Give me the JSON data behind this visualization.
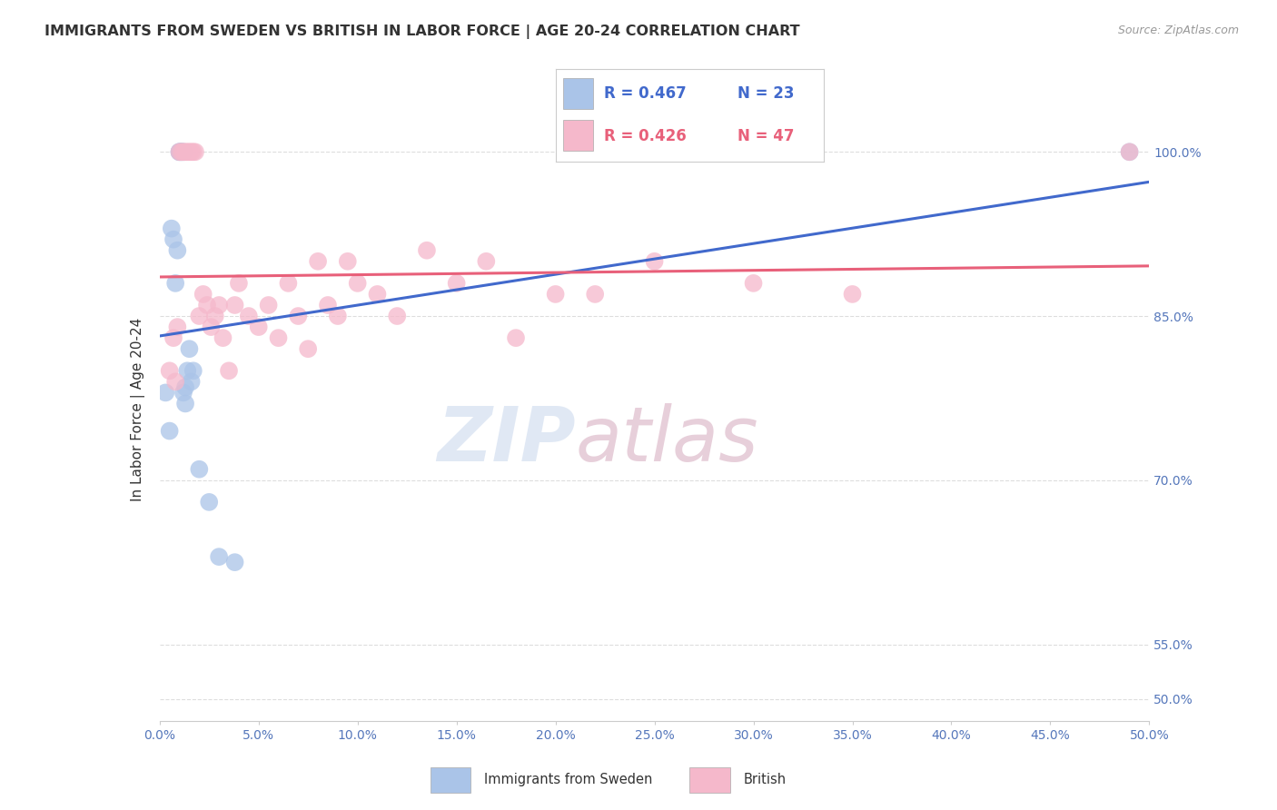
{
  "title": "IMMIGRANTS FROM SWEDEN VS BRITISH IN LABOR FORCE | AGE 20-24 CORRELATION CHART",
  "source": "Source: ZipAtlas.com",
  "ylabel": "In Labor Force | Age 20-24",
  "x_tick_labels": [
    "0.0%",
    "5.0%",
    "10.0%",
    "15.0%",
    "20.0%",
    "25.0%",
    "30.0%",
    "35.0%",
    "40.0%",
    "45.0%",
    "50.0%"
  ],
  "x_tick_values": [
    0.0,
    5.0,
    10.0,
    15.0,
    20.0,
    25.0,
    30.0,
    35.0,
    40.0,
    45.0,
    50.0
  ],
  "y_tick_labels": [
    "50.0%",
    "55.0%",
    "70.0%",
    "85.0%",
    "100.0%"
  ],
  "y_tick_values": [
    50.0,
    55.0,
    70.0,
    85.0,
    100.0
  ],
  "xlim": [
    0.0,
    50.0
  ],
  "ylim": [
    48.0,
    105.0
  ],
  "legend_r1": "R = 0.467",
  "legend_n1": "N = 23",
  "legend_r2": "R = 0.426",
  "legend_n2": "N = 47",
  "sweden_color": "#aac4e8",
  "british_color": "#f5b8cb",
  "sweden_line_color": "#4169cc",
  "british_line_color": "#e8607a",
  "title_color": "#333333",
  "axis_label_color": "#333333",
  "tick_color": "#5577bb",
  "grid_color": "#dddddd",
  "source_color": "#999999",
  "sweden_x": [
    0.3,
    0.5,
    0.6,
    0.7,
    0.8,
    0.9,
    1.0,
    1.0,
    1.1,
    1.1,
    1.2,
    1.2,
    1.3,
    1.3,
    1.4,
    1.5,
    1.6,
    1.7,
    2.0,
    2.5,
    3.0,
    3.8,
    49.0
  ],
  "sweden_y": [
    78.0,
    74.5,
    93.0,
    92.0,
    88.0,
    91.0,
    100.0,
    100.0,
    100.0,
    100.0,
    100.0,
    78.0,
    77.0,
    78.5,
    80.0,
    82.0,
    79.0,
    80.0,
    71.0,
    68.0,
    63.0,
    62.5,
    100.0
  ],
  "british_x": [
    0.5,
    0.7,
    0.8,
    0.9,
    1.0,
    1.1,
    1.2,
    1.3,
    1.4,
    1.5,
    1.6,
    1.7,
    1.8,
    2.0,
    2.2,
    2.4,
    2.6,
    2.8,
    3.0,
    3.2,
    3.5,
    3.8,
    4.0,
    4.5,
    5.0,
    5.5,
    6.0,
    6.5,
    7.0,
    7.5,
    8.0,
    8.5,
    9.0,
    9.5,
    10.0,
    11.0,
    12.0,
    13.5,
    15.0,
    16.5,
    18.0,
    20.0,
    22.0,
    25.0,
    30.0,
    35.0,
    49.0
  ],
  "british_y": [
    80.0,
    83.0,
    79.0,
    84.0,
    100.0,
    100.0,
    100.0,
    100.0,
    100.0,
    100.0,
    100.0,
    100.0,
    100.0,
    85.0,
    87.0,
    86.0,
    84.0,
    85.0,
    86.0,
    83.0,
    80.0,
    86.0,
    88.0,
    85.0,
    84.0,
    86.0,
    83.0,
    88.0,
    85.0,
    82.0,
    90.0,
    86.0,
    85.0,
    90.0,
    88.0,
    87.0,
    85.0,
    91.0,
    88.0,
    90.0,
    83.0,
    87.0,
    87.0,
    90.0,
    88.0,
    87.0,
    100.0
  ]
}
